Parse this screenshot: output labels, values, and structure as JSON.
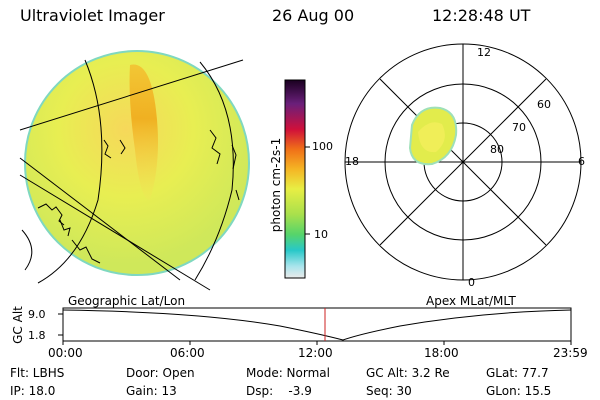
{
  "header": {
    "instrument": "Ultraviolet Imager",
    "date": "26 Aug 00",
    "time": "12:28:48 UT"
  },
  "colorbar": {
    "label": "photon cm-2s-1",
    "ticks": [
      "100",
      "10"
    ]
  },
  "polar_plot": {
    "mlt_labels": {
      "top": "12",
      "left": "18",
      "right": "6",
      "bottom": "0"
    },
    "lat_labels": [
      "60",
      "70",
      "80"
    ]
  },
  "captions": {
    "left": "Geographic Lat/Lon",
    "right": "Apex MLat/MLT"
  },
  "altitude_plot": {
    "ylabel": "GC Alt",
    "y_ticks": [
      "9.0",
      "1.8"
    ],
    "x_ticks": [
      "00:00",
      "06:00",
      "12:00",
      "18:00",
      "23:59"
    ]
  },
  "status": {
    "filter": "Flt: LBHS",
    "door": "Door: Open",
    "mode": "Mode: Normal",
    "gc_alt": "GC Alt: 3.2 Re",
    "glat": "GLat: 77.7",
    "ip": "IP: 18.0",
    "gain": "Gain: 13",
    "dsp": "Dsp:    -3.9",
    "seq": "Seq: 30",
    "glon": "GLon: 15.5"
  },
  "colors": {
    "disk_fill": "#e2ec4c",
    "aurora_core": "#f2b21a",
    "marker_line": "#cc2222"
  }
}
